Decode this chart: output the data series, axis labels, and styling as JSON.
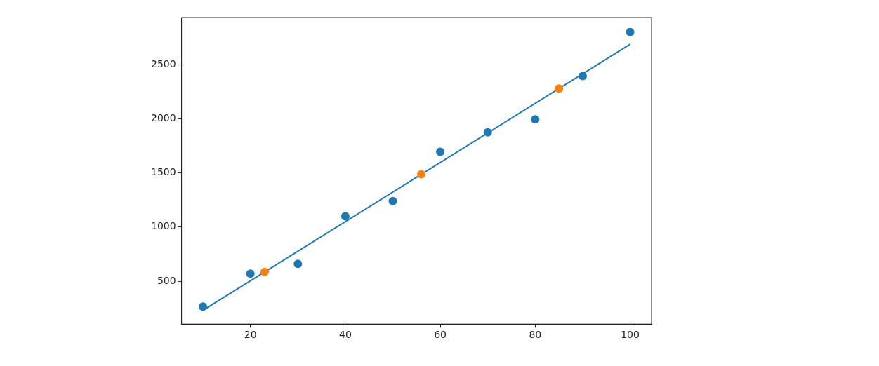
{
  "chart_data": {
    "type": "scatter",
    "xlim": [
      5.5,
      104.5
    ],
    "ylim": [
      104,
      2935
    ],
    "xticks": [
      20,
      40,
      60,
      80,
      100
    ],
    "yticks": [
      500,
      1000,
      1500,
      2000,
      2500
    ],
    "grid": false,
    "legend": false,
    "marker": "circle",
    "series": [
      {
        "type": "scatter",
        "color": "#1f77b4",
        "x": [
          10,
          20,
          30,
          40,
          50,
          60,
          70,
          80,
          90,
          100
        ],
        "values": [
          265,
          570,
          660,
          1100,
          1240,
          1695,
          1875,
          1995,
          2395,
          2800
        ]
      },
      {
        "type": "line",
        "color": "#1f77b4",
        "x": [
          10,
          100
        ],
        "values": [
          231,
          2688
        ],
        "marker": "none"
      },
      {
        "type": "scatter",
        "color": "#ff7f0e",
        "x": [
          23,
          56,
          85
        ],
        "values": [
          586,
          1487,
          2279
        ]
      }
    ]
  }
}
